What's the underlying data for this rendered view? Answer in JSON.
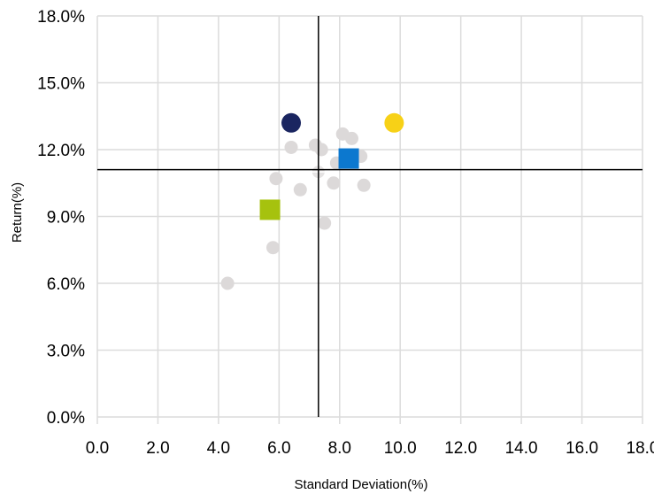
{
  "chart_data": {
    "type": "scatter",
    "xlabel": "Standard Deviation(%)",
    "ylabel": "Return(%)",
    "xlim": [
      0,
      18
    ],
    "ylim": [
      0,
      18
    ],
    "x_ticks": [
      0,
      2,
      4,
      6,
      8,
      10,
      12,
      14,
      16,
      18
    ],
    "x_tick_labels": [
      "0.0",
      "2.0",
      "4.0",
      "6.0",
      "8.0",
      "10.0",
      "12.0",
      "14.0",
      "16.0",
      "18.0"
    ],
    "y_ticks": [
      0,
      3,
      6,
      9,
      12,
      15,
      18
    ],
    "y_tick_labels": [
      "0.0%",
      "3.0%",
      "6.0%",
      "9.0%",
      "12.0%",
      "15.0%",
      "18.0%"
    ],
    "grid": true,
    "crosshair": {
      "x": 7.3,
      "y": 11.1
    },
    "series": [
      {
        "marker": "circle",
        "color": "#dcd9d9",
        "points": [
          {
            "x": 4.3,
            "y": 6.0
          },
          {
            "x": 5.8,
            "y": 7.6
          },
          {
            "x": 5.9,
            "y": 10.7
          },
          {
            "x": 6.7,
            "y": 10.2
          },
          {
            "x": 6.4,
            "y": 12.1
          },
          {
            "x": 7.2,
            "y": 12.2
          },
          {
            "x": 7.4,
            "y": 12.0
          },
          {
            "x": 7.5,
            "y": 8.7
          },
          {
            "x": 7.8,
            "y": 10.5
          },
          {
            "x": 7.9,
            "y": 11.4
          },
          {
            "x": 8.1,
            "y": 12.7
          },
          {
            "x": 8.4,
            "y": 12.5
          },
          {
            "x": 8.7,
            "y": 11.7
          },
          {
            "x": 8.8,
            "y": 10.4
          }
        ]
      },
      {
        "marker": "circle",
        "color": "#1a2560",
        "points": [
          {
            "x": 6.4,
            "y": 13.2
          }
        ]
      },
      {
        "marker": "circle",
        "color": "#f7d117",
        "points": [
          {
            "x": 9.8,
            "y": 13.2
          }
        ]
      },
      {
        "marker": "square",
        "color": "#0c78cf",
        "points": [
          {
            "x": 8.3,
            "y": 11.6
          }
        ]
      },
      {
        "marker": "square",
        "color": "#a6c20e",
        "points": [
          {
            "x": 5.7,
            "y": 9.3
          }
        ]
      },
      {
        "marker": "crosshair-circle",
        "color": "#e5e3e3",
        "points": [
          {
            "x": 7.3,
            "y": 11.0
          }
        ]
      }
    ]
  }
}
